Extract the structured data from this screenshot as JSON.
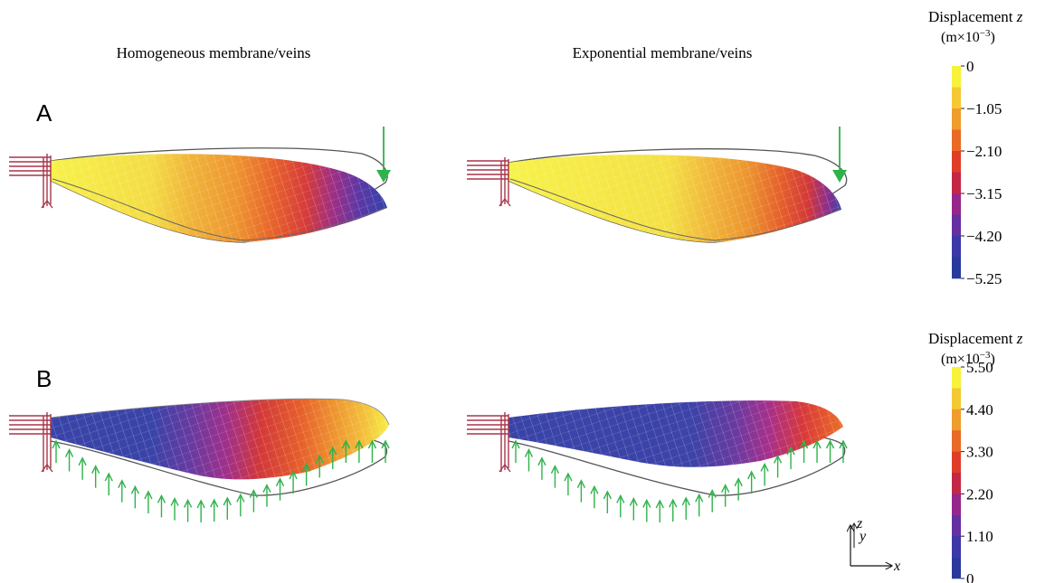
{
  "column_titles": [
    "Homogeneous membrane/veins",
    "Exponential membrane/veins"
  ],
  "panels": [
    {
      "label": "A",
      "load_direction": "down"
    },
    {
      "label": "B",
      "load_direction": "up"
    }
  ],
  "colorbars": [
    {
      "title": "Displacement z",
      "title_var": "z",
      "unit": "(m×10",
      "unit_exp": "−3",
      "unit_close": ")",
      "ticks": [
        "0",
        "−1.05",
        "−2.10",
        "−3.15",
        "−4.20",
        "−5.25"
      ],
      "colors": [
        "#f7f23a",
        "#f4c933",
        "#ef9d2c",
        "#e86a26",
        "#df3d28",
        "#c32745",
        "#96278a",
        "#6530a0",
        "#3c38a8",
        "#2a3a9c"
      ]
    },
    {
      "title": "Displacement z",
      "title_var": "z",
      "unit": "(m×10",
      "unit_exp": "−3",
      "unit_close": ")",
      "ticks": [
        "5.50",
        "4.40",
        "3.30",
        "2.20",
        "1.10",
        "0"
      ],
      "colors": [
        "#f7f23a",
        "#f4c933",
        "#ef9d2c",
        "#e86a26",
        "#df3d28",
        "#c32745",
        "#96278a",
        "#6530a0",
        "#3c38a8",
        "#2a3a9c"
      ]
    }
  ],
  "axes_triad": {
    "z": "z",
    "y": "y",
    "x": "x"
  },
  "colors": {
    "clamp_arrows": "#a8354a",
    "load_arrows": "#2fb24a",
    "outline": "#555555"
  }
}
